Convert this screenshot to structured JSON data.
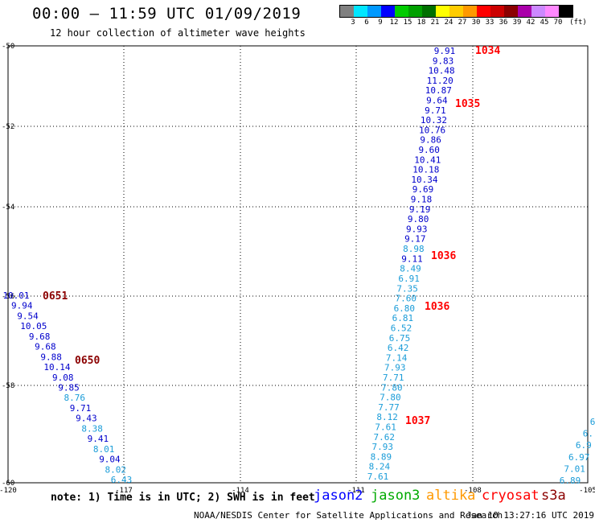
{
  "header": {
    "title": "00:00 – 11:59 UTC 01/09/2019",
    "subtitle": "12 hour collection of altimeter wave heights"
  },
  "color_scale": {
    "unit": "(ft)",
    "labels": [
      "3",
      "6",
      "9",
      "12",
      "15",
      "18",
      "21",
      "24",
      "27",
      "30",
      "33",
      "36",
      "39",
      "42",
      "45",
      "70"
    ],
    "colors": [
      "#808080",
      "#00e6ff",
      "#0099ff",
      "#0000ff",
      "#00cc00",
      "#00a000",
      "#007000",
      "#ffff00",
      "#ffcc00",
      "#ff9900",
      "#ff0000",
      "#cc0000",
      "#8b0000",
      "#aa00aa",
      "#cc88ff",
      "#ff88ff",
      "#000000"
    ]
  },
  "axes": {
    "lat_labels": [
      "-50",
      "-52",
      "-54",
      "-56",
      "-58",
      "-60"
    ],
    "lon_labels": [
      "-120",
      "-117",
      "-114",
      "-111",
      "-108",
      "-105"
    ]
  },
  "tracks": [
    {
      "id": "east-track",
      "points": [
        {
          "v": "9.91",
          "c": "#0000cc"
        },
        {
          "v": "9.83",
          "c": "#0000cc"
        },
        {
          "v": "10.48",
          "c": "#0000cc"
        },
        {
          "v": "11.20",
          "c": "#0000cc"
        },
        {
          "v": "10.87",
          "c": "#0000cc"
        },
        {
          "v": "9.64",
          "c": "#0000cc"
        },
        {
          "v": "9.71",
          "c": "#0000cc"
        },
        {
          "v": "10.32",
          "c": "#0000cc"
        },
        {
          "v": "10.76",
          "c": "#0000cc"
        },
        {
          "v": "9.86",
          "c": "#0000cc"
        },
        {
          "v": "9.60",
          "c": "#0000cc"
        },
        {
          "v": "10.41",
          "c": "#0000cc"
        },
        {
          "v": "10.18",
          "c": "#0000cc"
        },
        {
          "v": "10.34",
          "c": "#0000cc"
        },
        {
          "v": "9.69",
          "c": "#0000cc"
        },
        {
          "v": "9.18",
          "c": "#0000cc"
        },
        {
          "v": "9.19",
          "c": "#0000cc"
        },
        {
          "v": "9.80",
          "c": "#0000cc"
        },
        {
          "v": "9.93",
          "c": "#0000cc"
        },
        {
          "v": "9.17",
          "c": "#0000cc"
        },
        {
          "v": "8.98",
          "c": "#1a9cd8"
        },
        {
          "v": "9.11",
          "c": "#0000cc"
        },
        {
          "v": "8.49",
          "c": "#1a9cd8"
        },
        {
          "v": "6.91",
          "c": "#1a9cd8"
        },
        {
          "v": "7.35",
          "c": "#1a9cd8"
        },
        {
          "v": "7.60",
          "c": "#1a9cd8"
        },
        {
          "v": "6.80",
          "c": "#1a9cd8"
        },
        {
          "v": "6.81",
          "c": "#1a9cd8"
        },
        {
          "v": "6.52",
          "c": "#1a9cd8"
        },
        {
          "v": "6.75",
          "c": "#1a9cd8"
        },
        {
          "v": "6.42",
          "c": "#1a9cd8"
        },
        {
          "v": "7.14",
          "c": "#1a9cd8"
        },
        {
          "v": "7.93",
          "c": "#1a9cd8"
        },
        {
          "v": "7.71",
          "c": "#1a9cd8"
        },
        {
          "v": "7.80",
          "c": "#1a9cd8"
        },
        {
          "v": "7.80",
          "c": "#1a9cd8"
        },
        {
          "v": "7.77",
          "c": "#1a9cd8"
        },
        {
          "v": "8.12",
          "c": "#1a9cd8"
        },
        {
          "v": "7.61",
          "c": "#1a9cd8"
        },
        {
          "v": "7.62",
          "c": "#1a9cd8"
        },
        {
          "v": "7.93",
          "c": "#1a9cd8"
        },
        {
          "v": "8.89",
          "c": "#1a9cd8"
        },
        {
          "v": "8.24",
          "c": "#1a9cd8"
        },
        {
          "v": "7.61",
          "c": "#1a9cd8"
        }
      ],
      "time_labels": [
        "1034",
        "1035",
        "1036",
        "1036",
        "1037"
      ],
      "time_color": "#ff0000"
    },
    {
      "id": "west-track",
      "points": [
        {
          "v": "10.01",
          "c": "#0000cc"
        },
        {
          "v": "9.94",
          "c": "#0000cc"
        },
        {
          "v": "9.54",
          "c": "#0000cc"
        },
        {
          "v": "10.05",
          "c": "#0000cc"
        },
        {
          "v": "9.68",
          "c": "#0000cc"
        },
        {
          "v": "9.68",
          "c": "#0000cc"
        },
        {
          "v": "9.88",
          "c": "#0000cc"
        },
        {
          "v": "10.14",
          "c": "#0000cc"
        },
        {
          "v": "9.08",
          "c": "#0000cc"
        },
        {
          "v": "9.85",
          "c": "#0000cc"
        },
        {
          "v": "8.76",
          "c": "#1a9cd8"
        },
        {
          "v": "9.71",
          "c": "#0000cc"
        },
        {
          "v": "9.43",
          "c": "#0000cc"
        },
        {
          "v": "8.38",
          "c": "#1a9cd8"
        },
        {
          "v": "9.41",
          "c": "#0000cc"
        },
        {
          "v": "8.01",
          "c": "#1a9cd8"
        },
        {
          "v": "9.04",
          "c": "#0000cc"
        },
        {
          "v": "8.02",
          "c": "#1a9cd8"
        },
        {
          "v": "6.43",
          "c": "#1a9cd8"
        }
      ],
      "time_labels": [
        "0651",
        "0650"
      ],
      "time_color": "#8b0000"
    },
    {
      "id": "right-edge-track",
      "points": [
        {
          "v": "6",
          "c": "#1a9cd8"
        },
        {
          "v": "6.",
          "c": "#1a9cd8"
        },
        {
          "v": "6.9",
          "c": "#1a9cd8"
        },
        {
          "v": "6.97",
          "c": "#1a9cd8"
        },
        {
          "v": "7.01",
          "c": "#1a9cd8"
        },
        {
          "v": "6.89",
          "c": "#1a9cd8"
        }
      ]
    }
  ],
  "legend": {
    "note": "note: 1) Time is in UTC; 2) SWH is in feet",
    "satellites": [
      {
        "name": "jason2",
        "color": "#0000ff"
      },
      {
        "name": "jason3",
        "color": "#00aa00"
      },
      {
        "name": "altika",
        "color": "#ff9900"
      },
      {
        "name": "cryosat",
        "color": "#ff0000"
      },
      {
        "name": "s3a",
        "color": "#8b0000"
      }
    ]
  },
  "footer": {
    "org": "NOAA/NESDIS Center for Satellite Applications and Research",
    "timestamp": "Jan 10 13:27:16 UTC 2019"
  }
}
